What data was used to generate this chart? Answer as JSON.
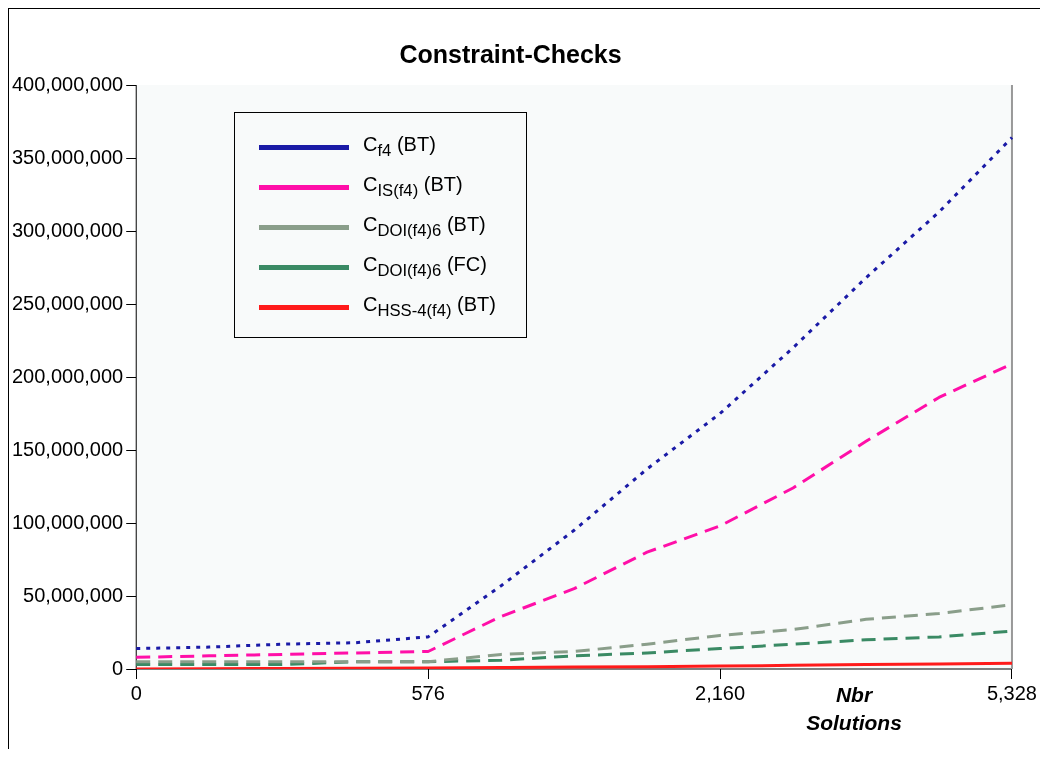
{
  "chart_data": {
    "type": "line",
    "title": "Constraint-Checks",
    "xlabel": "Nbr Solutions",
    "categories": [
      "0",
      null,
      null,
      null,
      "576",
      null,
      null,
      null,
      "2,160",
      null,
      null,
      null,
      "5,328"
    ],
    "ylim": [
      0,
      400000000
    ],
    "yticks": [
      {
        "value": 0,
        "label": "0"
      },
      {
        "value": 50000000,
        "label": "50,000,000"
      },
      {
        "value": 100000000,
        "label": "100,000,000"
      },
      {
        "value": 150000000,
        "label": "150,000,000"
      },
      {
        "value": 200000000,
        "label": "200,000,000"
      },
      {
        "value": 250000000,
        "label": "250,000,000"
      },
      {
        "value": 300000000,
        "label": "300,000,000"
      },
      {
        "value": 350000000,
        "label": "350,000,000"
      },
      {
        "value": 400000000,
        "label": "400,000,000"
      }
    ],
    "grid": false,
    "legend": "top left",
    "marker": "none",
    "series": [
      {
        "name": "C$_{f4}$ (BT)",
        "color": "#1a1aa6",
        "line_style": "dotted",
        "values": [
          14000000,
          15000000,
          17000000,
          18000000,
          22000000,
          57000000,
          95000000,
          137000000,
          175000000,
          220000000,
          268000000,
          313000000,
          364000000
        ]
      },
      {
        "name": "C$_{IS(f4)}$ (BT)",
        "color": "#ff0fa8",
        "line_style": "dashed",
        "values": [
          8000000,
          9000000,
          10000000,
          11000000,
          12000000,
          36000000,
          55000000,
          80000000,
          98000000,
          124000000,
          156000000,
          186000000,
          209000000
        ]
      },
      {
        "name": "C$_{DOI(f4)6}$ (BT)",
        "color": "#8a9e8a",
        "line_style": "dashed",
        "values": [
          5000000,
          5000000,
          5000000,
          5000000,
          5000000,
          10000000,
          12000000,
          17000000,
          23000000,
          27000000,
          34000000,
          38000000,
          44000000
        ]
      },
      {
        "name": "C$_{DOI(f4)6}$ (FC)",
        "color": "#3a8a64",
        "line_style": "dashed",
        "values": [
          3000000,
          3000000,
          3000000,
          5000000,
          5000000,
          6000000,
          9000000,
          11000000,
          14000000,
          17000000,
          20000000,
          22000000,
          26000000
        ]
      },
      {
        "name": "C$_{HSS-4(f4)}$ (BT)",
        "color": "#ff1a1a",
        "line_style": "solid",
        "values": [
          0,
          200000,
          400000,
          500000,
          700000,
          1000000,
          1300000,
          1600000,
          2000000,
          2500000,
          3000000,
          3500000,
          4000000
        ]
      }
    ]
  }
}
